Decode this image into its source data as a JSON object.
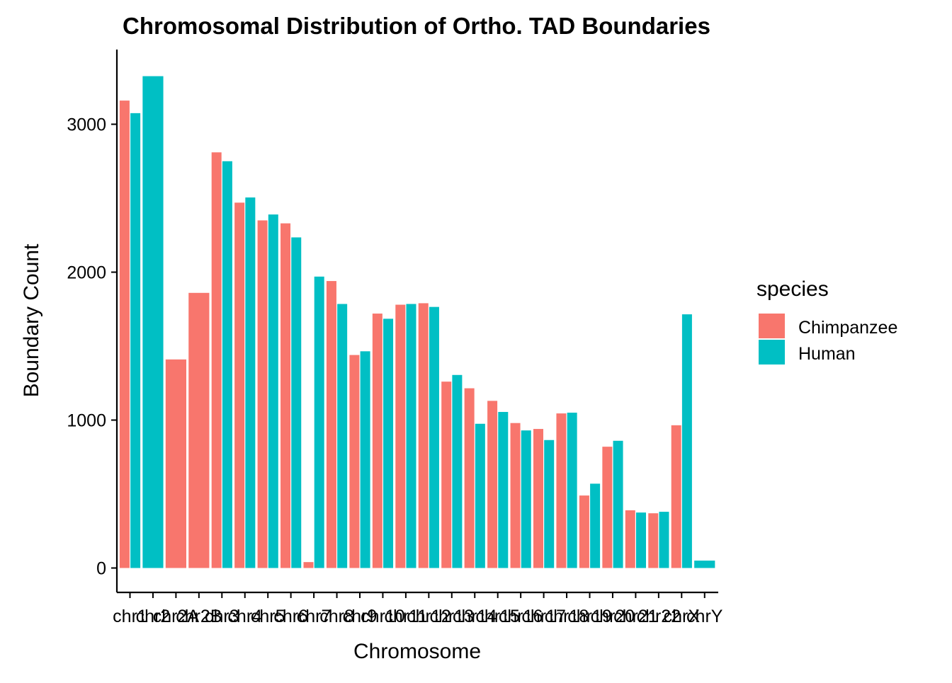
{
  "chart_data": {
    "type": "bar",
    "title": "Chromosomal Distribution of Ortho. TAD Boundaries",
    "xlabel": "Chromosome",
    "ylabel": "Boundary Count",
    "ylim": [
      -165,
      3505
    ],
    "yticks": [
      0,
      1000,
      2000,
      3000
    ],
    "grid": false,
    "legend": {
      "title": "species",
      "position": "right"
    },
    "categories": [
      "chr1",
      "chr2",
      "chr2A",
      "chr2B",
      "chr3",
      "chr4",
      "chr5",
      "chr6",
      "chr7",
      "chr8",
      "chr9",
      "chr10",
      "chr11",
      "chr12",
      "chr13",
      "chr14",
      "chr15",
      "chr16",
      "chr17",
      "chr18",
      "chr19",
      "chr20",
      "chr21",
      "chr22",
      "chrX",
      "chrY"
    ],
    "series": [
      {
        "name": "Chimpanzee",
        "color": "#F8766D",
        "values": [
          3160,
          null,
          1410,
          1860,
          2810,
          2470,
          2350,
          2330,
          40,
          1940,
          1440,
          1720,
          1780,
          1790,
          1260,
          1215,
          1130,
          980,
          940,
          1045,
          490,
          820,
          390,
          370,
          965,
          null
        ]
      },
      {
        "name": "Human",
        "color": "#00BFC4",
        "values": [
          3075,
          3325,
          null,
          null,
          2750,
          2505,
          2390,
          2235,
          1970,
          1785,
          1465,
          1685,
          1785,
          1765,
          1305,
          975,
          1055,
          930,
          865,
          1050,
          570,
          860,
          375,
          380,
          1715,
          50
        ]
      }
    ]
  }
}
